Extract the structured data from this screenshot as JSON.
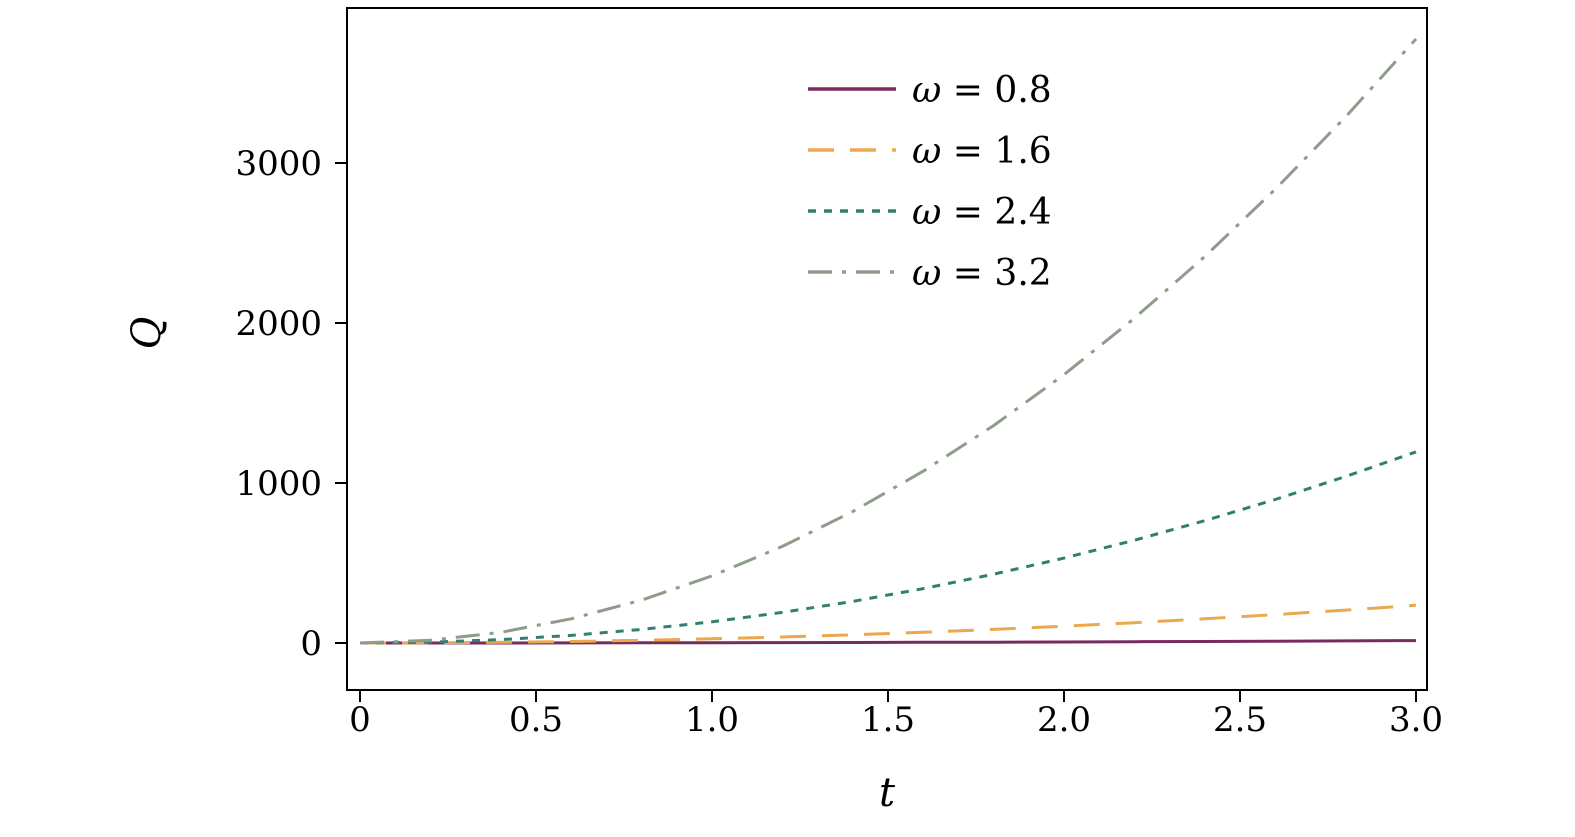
{
  "figure": {
    "background": "#ffffff",
    "frame_color": "#000000",
    "tick_color": "#000000"
  },
  "chart_data": {
    "type": "line",
    "title": "",
    "xlabel": "t",
    "ylabel": "Q",
    "xlim": [
      0,
      3.0
    ],
    "ylim": [
      -290,
      3970
    ],
    "grid": false,
    "legend": {
      "position": "top-center-inside",
      "frame": false
    },
    "xticks": {
      "values": [
        0,
        0.5,
        1.0,
        1.5,
        2.0,
        2.5,
        3.0
      ],
      "labels": [
        "0",
        "0.5",
        "1.0",
        "1.5",
        "2.0",
        "2.5",
        "3.0"
      ]
    },
    "yticks": {
      "values": [
        0,
        1000,
        2000,
        3000
      ],
      "labels": [
        "0",
        "1000",
        "2000",
        "3000"
      ]
    },
    "x": [
      0,
      0.2,
      0.4,
      0.6,
      0.8,
      1.0,
      1.2,
      1.4,
      1.6,
      1.8,
      2.0,
      2.2,
      2.4,
      2.6,
      2.8,
      3.0
    ],
    "series": [
      {
        "name": "ω = 0.8",
        "symbol": "ω",
        "label_rest": " = 0.8",
        "omega": 0.8,
        "color": "#772B5E",
        "linestyle": "solid",
        "values": [
          0,
          0.07,
          0.26,
          0.59,
          1.05,
          1.64,
          2.36,
          3.21,
          4.19,
          5.31,
          6.55,
          7.93,
          9.44,
          11.08,
          12.85,
          14.75
        ]
      },
      {
        "name": "ω = 1.6",
        "symbol": "ω",
        "label_rest": " = 1.6",
        "omega": 1.6,
        "color": "#ECA84F",
        "linestyle": "dash",
        "values": [
          0,
          1.0,
          4.2,
          9.4,
          16.8,
          26.2,
          37.7,
          51.4,
          67.1,
          84.9,
          104.9,
          126.9,
          151.0,
          177.2,
          205.5,
          235.9
        ]
      },
      {
        "name": "ω = 2.4",
        "symbol": "ω",
        "label_rest": " = 2.4",
        "omega": 2.4,
        "color": "#317F72",
        "linestyle": "dot",
        "values": [
          0,
          5.3,
          21.2,
          47.8,
          84.9,
          132.7,
          191.1,
          260.1,
          339.7,
          430.0,
          530.8,
          642.3,
          764.4,
          897.1,
          1040.4,
          1194.4
        ]
      },
      {
        "name": "ω = 3.2",
        "symbol": "ω",
        "label_rest": " = 3.2",
        "omega": 3.2,
        "color": "#8E9D8A",
        "linestyle": "dashdot",
        "values": [
          0,
          16.8,
          67.1,
          151.0,
          268.4,
          419.4,
          604.0,
          822.1,
          1073.7,
          1359.0,
          1677.7,
          2030.0,
          2415.9,
          2835.4,
          3288.3,
          3774.9
        ]
      }
    ]
  }
}
